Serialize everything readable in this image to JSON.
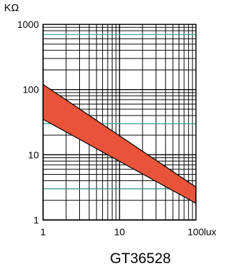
{
  "chart_data": {
    "type": "area",
    "title": "",
    "caption": "GT36528",
    "y_unit": "KΩ",
    "x_unit_suffix": "lux",
    "x_scale": "log",
    "y_scale": "log",
    "xlim": [
      1,
      100
    ],
    "ylim": [
      1,
      1000
    ],
    "x_ticks": [
      {
        "value": 1,
        "label": "1"
      },
      {
        "value": 10,
        "label": "10"
      },
      {
        "value": 100,
        "label": "100"
      }
    ],
    "y_ticks": [
      {
        "value": 1,
        "label": "1"
      },
      {
        "value": 10,
        "label": "10"
      },
      {
        "value": 100,
        "label": "100"
      },
      {
        "value": 1000,
        "label": "1000"
      }
    ],
    "grid": true,
    "band": {
      "x": [
        1,
        100
      ],
      "upper": [
        120,
        3.2
      ],
      "lower": [
        35,
        1.8
      ],
      "color": "#e8533a"
    },
    "highlight_lines_y": [
      700,
      30,
      3
    ],
    "highlight_color": "#3aa89a"
  }
}
